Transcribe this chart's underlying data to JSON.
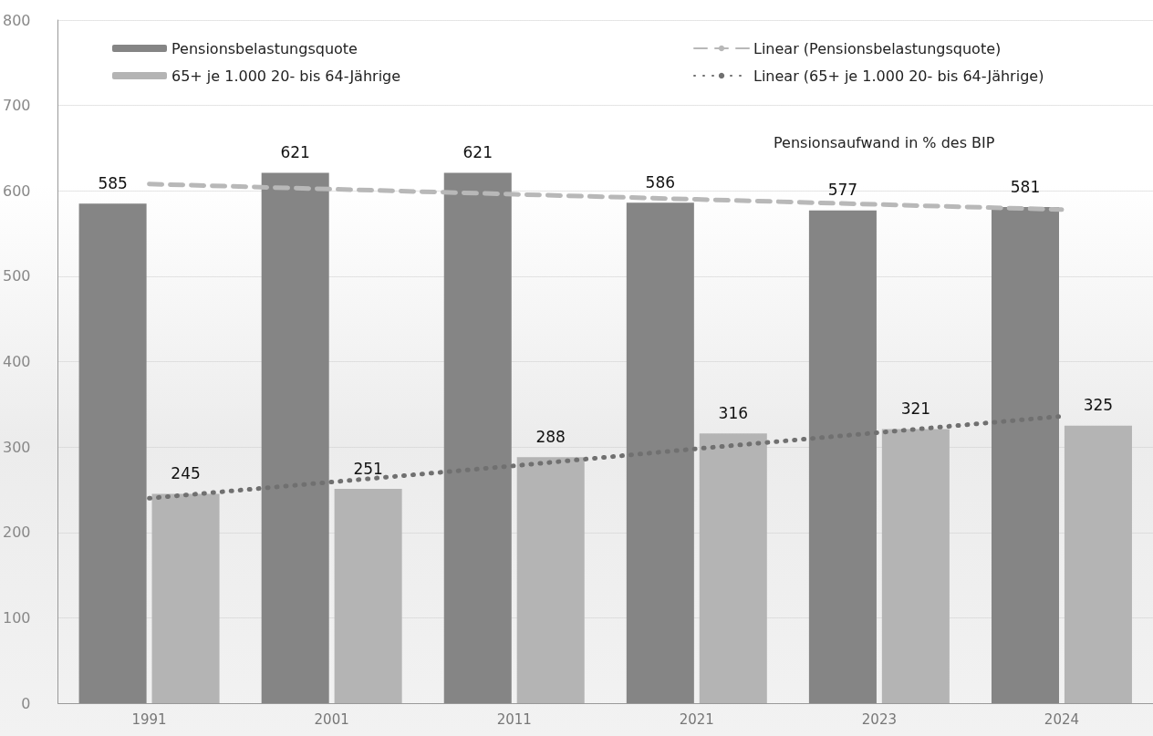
{
  "chart_data": {
    "type": "bar",
    "categories": [
      "1991",
      "2001",
      "2011",
      "2021",
      "2023",
      "2024"
    ],
    "series": [
      {
        "name": "Pensionsbelastungsquote",
        "color": "#858585",
        "values": [
          585,
          621,
          621,
          586,
          577,
          581
        ],
        "value_labels": [
          "585",
          "621",
          "621",
          "586",
          "577",
          "581"
        ]
      },
      {
        "name": "65+ je 1.000 20- bis 64-Jährige",
        "color": "#b4b4b4",
        "values": [
          245,
          251,
          288,
          316,
          321,
          325
        ],
        "value_labels": [
          "245",
          "251",
          "288",
          "316",
          "321",
          "325"
        ]
      },
      {
        "name": "Linear (Pensionsbelastungsquote)",
        "type": "line",
        "color": "#b8b8b8",
        "line_style": "dashed",
        "marker": "none",
        "values": [
          608,
          602,
          596,
          590,
          584,
          578
        ]
      },
      {
        "name": "Linear (65+ je 1.000 20- bis 64-Jährige)",
        "type": "line",
        "color": "#707070",
        "line_style": "dotted",
        "marker": "none",
        "values": [
          240,
          259,
          278,
          298,
          317,
          336
        ]
      }
    ],
    "ylim": [
      0,
      800
    ],
    "yticks": [
      0,
      100,
      200,
      300,
      400,
      500,
      600,
      700,
      800
    ],
    "grid": "y",
    "legend": "top",
    "annotations": [
      "Pensionsaufwand in % des BIP"
    ]
  }
}
